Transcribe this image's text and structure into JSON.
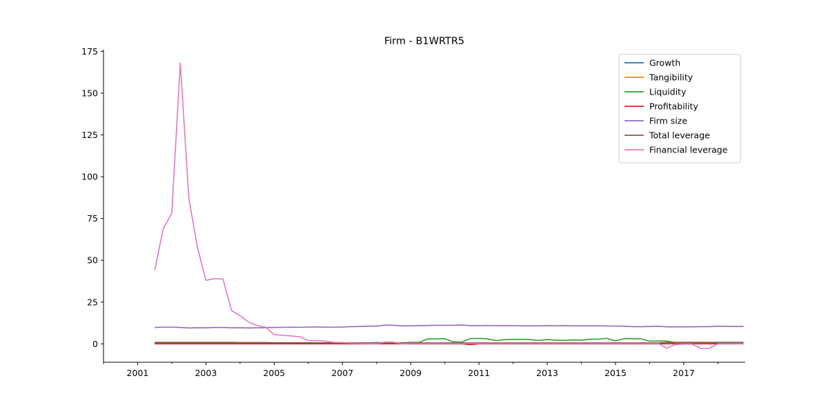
{
  "chart_data": {
    "type": "line",
    "title": "Firm - B1WRTR5",
    "xlabel": "",
    "ylabel": "",
    "xlim": [
      2000.0,
      2018.8
    ],
    "ylim": [
      -11,
      176
    ],
    "x_ticks": [
      2001,
      2003,
      2005,
      2007,
      2009,
      2011,
      2013,
      2015,
      2017
    ],
    "x_tick_labels": [
      "2001",
      "2003",
      "2005",
      "2007",
      "2009",
      "2011",
      "2013",
      "2015",
      "2017"
    ],
    "y_ticks": [
      0,
      25,
      50,
      75,
      100,
      125,
      150,
      175
    ],
    "y_tick_labels": [
      "0",
      "25",
      "50",
      "75",
      "100",
      "125",
      "150",
      "175"
    ],
    "grid": false,
    "legend_position": "top-right",
    "x": [
      2001.5,
      2001.75,
      2002.0,
      2002.25,
      2002.5,
      2002.75,
      2003.0,
      2003.25,
      2003.5,
      2003.75,
      2004.0,
      2004.25,
      2004.5,
      2004.75,
      2005.0,
      2005.25,
      2005.5,
      2005.75,
      2006.0,
      2006.25,
      2006.5,
      2006.75,
      2007.0,
      2007.25,
      2007.5,
      2007.75,
      2008.0,
      2008.25,
      2008.5,
      2008.75,
      2009.0,
      2009.25,
      2009.5,
      2009.75,
      2010.0,
      2010.25,
      2010.5,
      2010.75,
      2011.0,
      2011.25,
      2011.5,
      2011.75,
      2012.0,
      2012.25,
      2012.5,
      2012.75,
      2013.0,
      2013.25,
      2013.5,
      2013.75,
      2014.0,
      2014.25,
      2014.5,
      2014.75,
      2015.0,
      2015.25,
      2015.5,
      2015.75,
      2016.0,
      2016.25,
      2016.5,
      2016.75,
      2017.0,
      2017.25,
      2017.5,
      2017.75,
      2018.0,
      2018.25,
      2018.5,
      2018.75
    ],
    "series": [
      {
        "name": "Growth",
        "color": "#1f77b4",
        "values": [
          0.1,
          0.1,
          0.1,
          0.1,
          0.1,
          0.1,
          0.1,
          0.1,
          0.1,
          0.1,
          0.1,
          0.1,
          0.1,
          0.1,
          0.1,
          0.1,
          0.1,
          0.1,
          0.1,
          0.1,
          0.1,
          0.1,
          0.1,
          0.1,
          0.1,
          0.1,
          0.1,
          0.1,
          0.1,
          0.1,
          0.1,
          0.1,
          0.1,
          0.1,
          0.1,
          0.1,
          0.1,
          0.1,
          0.1,
          0.1,
          0.1,
          0.1,
          0.1,
          0.1,
          0.1,
          0.1,
          0.1,
          0.1,
          0.1,
          0.1,
          0.1,
          0.1,
          0.1,
          0.1,
          0.1,
          0.1,
          0.1,
          0.1,
          0.1,
          0.1,
          0.1,
          0.1,
          0.1,
          0.1,
          0.1,
          0.1,
          0.1,
          0.1,
          0.1,
          0.1
        ]
      },
      {
        "name": "Tangibility",
        "color": "#ff7f0e",
        "values": [
          0.4,
          0.4,
          0.4,
          0.4,
          0.4,
          0.4,
          0.4,
          0.4,
          0.4,
          0.4,
          0.4,
          0.4,
          0.4,
          0.4,
          0.4,
          0.4,
          0.4,
          0.4,
          0.4,
          0.4,
          0.4,
          0.4,
          0.4,
          0.4,
          0.4,
          0.4,
          0.4,
          0.4,
          0.4,
          0.4,
          0.4,
          0.4,
          0.4,
          0.4,
          0.4,
          0.4,
          0.4,
          0.4,
          0.4,
          0.4,
          0.4,
          0.4,
          0.4,
          0.4,
          0.4,
          0.4,
          0.4,
          0.4,
          0.4,
          0.4,
          0.4,
          0.4,
          0.4,
          0.4,
          0.4,
          0.4,
          0.4,
          0.4,
          0.4,
          0.4,
          0.4,
          0.4,
          0.4,
          0.4,
          0.4,
          0.4,
          0.4,
          0.4,
          0.4,
          0.4
        ]
      },
      {
        "name": "Liquidity",
        "color": "#2ca02c",
        "values": [
          0.6,
          0.6,
          0.6,
          0.6,
          0.6,
          0.6,
          0.6,
          0.6,
          0.6,
          0.6,
          0.6,
          0.6,
          0.6,
          0.6,
          0.6,
          0.6,
          0.6,
          0.6,
          0.6,
          0.6,
          0.6,
          0.6,
          0.6,
          0.6,
          0.6,
          0.6,
          0.8,
          0.8,
          0.6,
          0.6,
          0.9,
          0.9,
          3.0,
          2.9,
          3.1,
          1.2,
          1.1,
          3.2,
          3.2,
          3.0,
          1.9,
          2.5,
          2.7,
          2.7,
          2.6,
          2.0,
          2.6,
          2.2,
          2.1,
          2.4,
          2.2,
          2.8,
          2.8,
          3.3,
          1.8,
          3.1,
          3.1,
          3.0,
          1.6,
          1.7,
          1.7,
          0.8,
          0.8,
          0.8,
          0.8,
          0.8,
          0.6,
          0.6,
          0.6,
          0.6
        ]
      },
      {
        "name": "Profitability",
        "color": "#d62728",
        "values": [
          0.0,
          0.0,
          0.0,
          0.0,
          0.0,
          0.0,
          0.0,
          0.0,
          0.0,
          0.0,
          0.0,
          0.0,
          0.0,
          0.0,
          0.0,
          0.0,
          0.0,
          0.0,
          0.0,
          0.0,
          0.0,
          0.0,
          0.0,
          0.0,
          0.0,
          0.0,
          0.0,
          0.0,
          0.0,
          0.0,
          0.0,
          0.0,
          0.0,
          0.0,
          0.0,
          0.0,
          0.0,
          -0.5,
          0.0,
          0.0,
          0.0,
          0.0,
          0.0,
          0.0,
          0.0,
          0.0,
          0.0,
          0.0,
          0.0,
          0.0,
          0.0,
          0.0,
          0.0,
          0.0,
          0.0,
          0.0,
          0.0,
          0.0,
          0.0,
          0.0,
          0.0,
          0.0,
          0.0,
          0.0,
          0.0,
          0.0,
          0.0,
          0.0,
          0.0,
          0.0
        ]
      },
      {
        "name": "Firm size",
        "color": "#9467bd",
        "values": [
          9.8,
          10.0,
          10.0,
          9.8,
          9.5,
          9.6,
          9.6,
          9.8,
          9.8,
          9.6,
          9.6,
          9.5,
          9.6,
          9.7,
          9.8,
          9.9,
          10.0,
          9.9,
          10.1,
          10.1,
          10.0,
          10.0,
          10.1,
          10.3,
          10.4,
          10.6,
          10.6,
          11.2,
          11.1,
          10.8,
          10.8,
          10.9,
          11.0,
          11.1,
          11.1,
          11.1,
          11.3,
          10.9,
          10.9,
          11.0,
          10.9,
          10.9,
          10.9,
          10.8,
          10.8,
          10.8,
          10.9,
          10.8,
          10.9,
          10.8,
          10.8,
          10.8,
          10.8,
          10.7,
          10.6,
          10.6,
          10.3,
          10.3,
          10.4,
          10.6,
          10.2,
          10.2,
          10.2,
          10.2,
          10.3,
          10.3,
          10.6,
          10.5,
          10.4,
          10.5
        ]
      },
      {
        "name": "Total leverage",
        "color": "#8c564b",
        "values": [
          0.9,
          0.9,
          0.9,
          0.9,
          0.9,
          0.9,
          0.9,
          0.9,
          0.9,
          0.9,
          0.8,
          0.8,
          0.8,
          0.8,
          0.7,
          0.7,
          0.7,
          0.7,
          0.7,
          0.6,
          0.6,
          0.6,
          0.6,
          0.6,
          0.6,
          0.6,
          0.6,
          0.6,
          0.6,
          0.6,
          0.6,
          0.6,
          0.6,
          0.6,
          0.6,
          0.6,
          0.6,
          0.6,
          0.6,
          0.6,
          0.6,
          0.6,
          0.6,
          0.6,
          0.6,
          0.6,
          0.6,
          0.6,
          0.6,
          0.6,
          0.6,
          0.6,
          0.6,
          0.6,
          0.6,
          0.6,
          0.6,
          0.6,
          0.6,
          0.6,
          0.9,
          0.9,
          0.9,
          0.9,
          0.9,
          0.9,
          0.9,
          0.9,
          0.9,
          0.9
        ]
      },
      {
        "name": "Financial leverage",
        "color": "#e377c2",
        "values": [
          44,
          69,
          78,
          168,
          87,
          58,
          38,
          39,
          38.8,
          20,
          16.8,
          13,
          11,
          10,
          5.5,
          5.1,
          4.7,
          4.2,
          2.0,
          1.9,
          1.6,
          0.9,
          0.8,
          0.4,
          0.3,
          0.2,
          0.1,
          1.1,
          1.0,
          0.0,
          0.3,
          0.3,
          0.3,
          0.3,
          0.3,
          0.3,
          0.3,
          0.3,
          0.3,
          0.3,
          0.3,
          0.3,
          0.3,
          0.3,
          0.3,
          0.3,
          0.3,
          0.3,
          0.3,
          0.3,
          0.3,
          0.3,
          0.3,
          0.3,
          0.3,
          0.3,
          0.3,
          0.3,
          0.3,
          0.3,
          -2.6,
          -0.4,
          -0.2,
          -0.2,
          -2.8,
          -2.6,
          0.0,
          0.0,
          0.0,
          0.2
        ]
      }
    ]
  }
}
